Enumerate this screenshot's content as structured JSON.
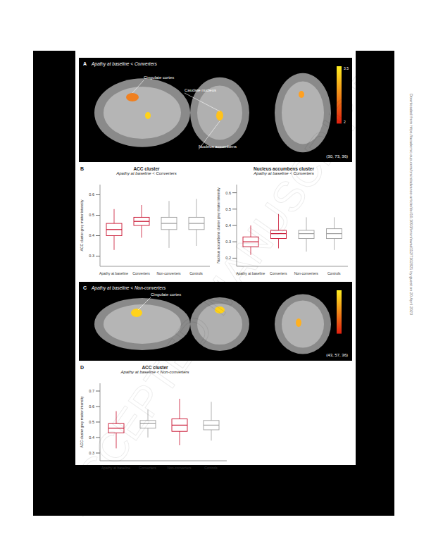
{
  "page": {
    "side_text": "Downloaded from https://academic.oup.com/brain/advance-article/doi/10.1093/brain/awad112/7102821 by guest on 20 April 2023",
    "watermark": "ACCEPTED MANUSCRIPT"
  },
  "brain_panels": [
    {
      "panel": "A",
      "title": "Apathy at baseline < Converters",
      "labels": [
        "Cingulate cortex",
        "Caudate nucleus",
        "Nucleus accumbens"
      ],
      "coordinates": "(30, 73, 36)",
      "colorbar_labels": [
        "3.5",
        "2"
      ]
    },
    {
      "panel": "C",
      "title": "Apathy at baseline < Non-converters",
      "labels": [
        "Cingulate cortex"
      ],
      "coordinates": "(43, 57, 36)",
      "colorbar_labels": []
    }
  ],
  "chart_data": [
    {
      "type": "box",
      "panel": "B",
      "title": "ACC cluster",
      "subtitle": "Apathy at baseline < Converters",
      "y_label": "ACC cluster grey matter intensity",
      "categories": [
        "Apathy at baseline",
        "Converters",
        "Non-converters",
        "Controls"
      ],
      "boxes": [
        {
          "min": 0.33,
          "q1": 0.4,
          "median": 0.43,
          "q3": 0.46,
          "max": 0.53
        },
        {
          "min": 0.39,
          "q1": 0.45,
          "median": 0.47,
          "q3": 0.49,
          "max": 0.55
        },
        {
          "min": 0.34,
          "q1": 0.43,
          "median": 0.46,
          "q3": 0.49,
          "max": 0.57
        },
        {
          "min": 0.35,
          "q1": 0.43,
          "median": 0.46,
          "q3": 0.49,
          "max": 0.58
        }
      ],
      "colors": [
        "#c8102e",
        "#c8102e",
        "#9e9e9e",
        "#9e9e9e"
      ],
      "ylim": [
        0.25,
        0.65
      ],
      "yticks": [
        0.3,
        0.4,
        0.5,
        0.6
      ]
    },
    {
      "type": "box",
      "title": "Nucleus accumbens cluster",
      "subtitle": "Apathy at baseline < Converters",
      "y_label": "Nucleus accumbens cluster grey matter intensity",
      "categories": [
        "Apathy at baseline",
        "Converters",
        "Non-converters",
        "Controls"
      ],
      "boxes": [
        {
          "min": 0.22,
          "q1": 0.27,
          "median": 0.3,
          "q3": 0.33,
          "max": 0.4
        },
        {
          "min": 0.26,
          "q1": 0.32,
          "median": 0.35,
          "q3": 0.37,
          "max": 0.47
        },
        {
          "min": 0.24,
          "q1": 0.32,
          "median": 0.35,
          "q3": 0.37,
          "max": 0.45
        },
        {
          "min": 0.25,
          "q1": 0.32,
          "median": 0.35,
          "q3": 0.38,
          "max": 0.45
        }
      ],
      "colors": [
        "#c8102e",
        "#c8102e",
        "#9e9e9e",
        "#9e9e9e"
      ],
      "ylim": [
        0.15,
        0.65
      ],
      "yticks": [
        0.2,
        0.3,
        0.4,
        0.5,
        0.6
      ]
    },
    {
      "type": "box",
      "panel": "D",
      "title": "ACC cluster",
      "subtitle": "Apathy at baseline < Non-converters",
      "y_label": "ACC cluster grey matter intensity",
      "categories": [
        "Apathy at baseline",
        "Converters",
        "Non-converters",
        "Controls"
      ],
      "boxes": [
        {
          "min": 0.33,
          "q1": 0.43,
          "median": 0.46,
          "q3": 0.49,
          "max": 0.57
        },
        {
          "min": 0.4,
          "q1": 0.46,
          "median": 0.49,
          "q3": 0.51,
          "max": 0.58
        },
        {
          "min": 0.35,
          "q1": 0.44,
          "median": 0.48,
          "q3": 0.52,
          "max": 0.65
        },
        {
          "min": 0.38,
          "q1": 0.45,
          "median": 0.48,
          "q3": 0.51,
          "max": 0.63
        }
      ],
      "colors": [
        "#c8102e",
        "#9e9e9e",
        "#c8102e",
        "#9e9e9e"
      ],
      "ylim": [
        0.25,
        0.75
      ],
      "yticks": [
        0.3,
        0.4,
        0.5,
        0.6,
        0.7
      ]
    }
  ]
}
